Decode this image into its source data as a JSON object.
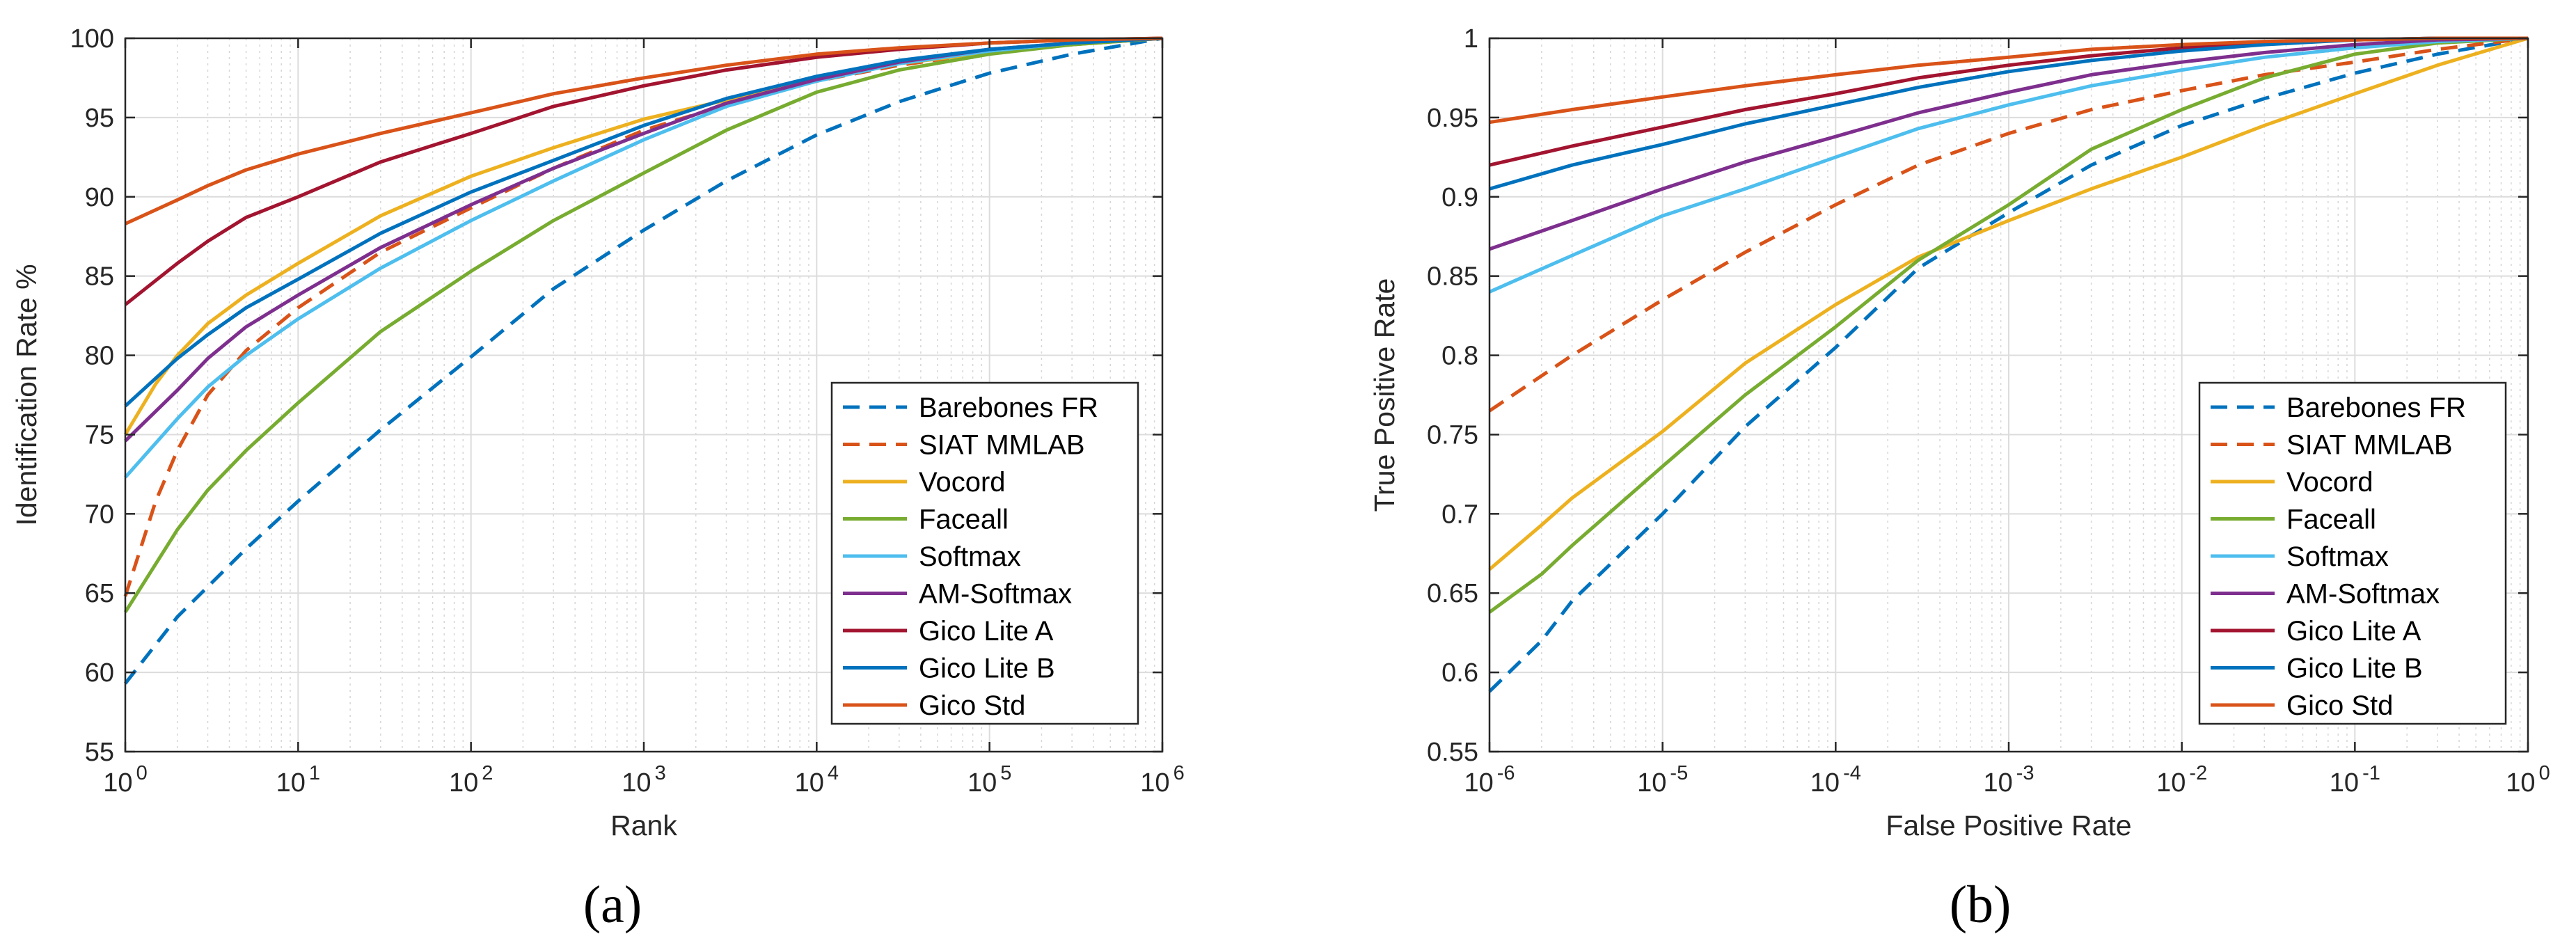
{
  "chart_data": [
    {
      "type": "line",
      "panel_label": "(a)",
      "xlabel": "Rank",
      "ylabel": "Identification Rate %",
      "xscale": "log",
      "xlim": [
        1,
        1000000
      ],
      "ylim": [
        55,
        100
      ],
      "xticks": [
        {
          "exp": 0,
          "base": "10",
          "sup": "0"
        },
        {
          "exp": 1,
          "base": "10",
          "sup": "1"
        },
        {
          "exp": 2,
          "base": "10",
          "sup": "2"
        },
        {
          "exp": 3,
          "base": "10",
          "sup": "3"
        },
        {
          "exp": 4,
          "base": "10",
          "sup": "4"
        },
        {
          "exp": 5,
          "base": "10",
          "sup": "5"
        },
        {
          "exp": 6,
          "base": "10",
          "sup": "6"
        }
      ],
      "yticks": [
        55,
        60,
        65,
        70,
        75,
        80,
        85,
        90,
        95,
        100
      ],
      "ytick_labels": [
        "55",
        "60",
        "65",
        "70",
        "75",
        "80",
        "85",
        "90",
        "95",
        "100"
      ],
      "grid": true,
      "legend_position": "bottom-right",
      "series": [
        {
          "name": "Barebones FR",
          "color": "#0072BD",
          "dashed": true,
          "x": [
            1,
            2,
            5,
            10,
            30,
            100,
            300,
            1000,
            3000,
            10000,
            30000,
            100000,
            300000,
            1000000
          ],
          "y": [
            59.3,
            63.5,
            67.8,
            70.8,
            75.3,
            79.9,
            84.2,
            87.9,
            91.0,
            93.9,
            96.0,
            97.8,
            99.0,
            100
          ]
        },
        {
          "name": "SIAT MMLAB",
          "color": "#D95319",
          "dashed": true,
          "x": [
            1,
            1.5,
            2,
            3,
            5,
            10,
            30,
            100,
            300,
            1000,
            3000,
            10000,
            30000,
            100000,
            300000,
            1000000
          ],
          "y": [
            64.8,
            70.8,
            74.0,
            77.5,
            80.3,
            83.0,
            86.5,
            89.3,
            91.8,
            94.2,
            95.8,
            97.3,
            98.3,
            99.1,
            99.6,
            100
          ]
        },
        {
          "name": "Vocord",
          "color": "#EDB120",
          "dashed": false,
          "x": [
            1,
            1.5,
            2,
            3,
            5,
            10,
            30,
            100,
            300,
            1000,
            3000,
            10000,
            30000,
            100000,
            300000,
            1000000
          ],
          "y": [
            75.0,
            78.2,
            80.0,
            82.0,
            83.8,
            85.8,
            88.8,
            91.3,
            93.1,
            94.9,
            96.1,
            97.5,
            98.4,
            99.1,
            99.6,
            100
          ]
        },
        {
          "name": "Faceall",
          "color": "#77AC30",
          "dashed": false,
          "x": [
            1,
            2,
            3,
            5,
            10,
            30,
            100,
            300,
            1000,
            3000,
            10000,
            30000,
            100000,
            300000,
            1000000
          ],
          "y": [
            63.8,
            69.0,
            71.5,
            74.0,
            77.0,
            81.5,
            85.3,
            88.5,
            91.5,
            94.2,
            96.6,
            98.0,
            99.0,
            99.6,
            100
          ]
        },
        {
          "name": "Softmax",
          "color": "#4DBEEE",
          "dashed": false,
          "x": [
            1,
            2,
            3,
            5,
            10,
            30,
            100,
            300,
            1000,
            3000,
            10000,
            30000,
            100000,
            300000,
            1000000
          ],
          "y": [
            72.3,
            76.0,
            78.0,
            80.0,
            82.3,
            85.5,
            88.5,
            91.0,
            93.6,
            95.7,
            97.3,
            98.4,
            99.2,
            99.7,
            100
          ]
        },
        {
          "name": "AM-Softmax",
          "color": "#7E2F8E",
          "dashed": false,
          "x": [
            1,
            2,
            3,
            5,
            10,
            30,
            100,
            300,
            1000,
            3000,
            10000,
            30000,
            100000,
            300000,
            1000000
          ],
          "y": [
            74.6,
            77.8,
            79.8,
            81.8,
            83.8,
            86.8,
            89.5,
            91.8,
            94.0,
            95.9,
            97.4,
            98.5,
            99.3,
            99.7,
            100
          ]
        },
        {
          "name": "Gico Lite A",
          "color": "#A2142F",
          "dashed": false,
          "x": [
            1,
            2,
            3,
            5,
            10,
            30,
            100,
            300,
            1000,
            3000,
            10000,
            30000,
            100000,
            300000,
            1000000
          ],
          "y": [
            83.2,
            85.8,
            87.2,
            88.7,
            90.0,
            92.2,
            94.0,
            95.7,
            97.0,
            98.0,
            98.8,
            99.3,
            99.7,
            99.9,
            100
          ]
        },
        {
          "name": "Gico Lite B",
          "color": "#0072BD",
          "dashed": false,
          "x": [
            1,
            2,
            3,
            5,
            10,
            30,
            100,
            300,
            1000,
            3000,
            10000,
            30000,
            100000,
            300000,
            1000000
          ],
          "y": [
            76.8,
            79.8,
            81.3,
            83.0,
            84.8,
            87.7,
            90.3,
            92.3,
            94.5,
            96.2,
            97.6,
            98.6,
            99.3,
            99.7,
            100
          ]
        },
        {
          "name": "Gico Std",
          "color": "#D95319",
          "dashed": false,
          "x": [
            1,
            2,
            3,
            5,
            10,
            30,
            100,
            300,
            1000,
            3000,
            10000,
            30000,
            100000,
            300000,
            1000000
          ],
          "y": [
            88.3,
            89.8,
            90.7,
            91.7,
            92.7,
            94.0,
            95.3,
            96.5,
            97.5,
            98.3,
            99.0,
            99.4,
            99.7,
            99.9,
            100
          ]
        }
      ]
    },
    {
      "type": "line",
      "panel_label": "(b)",
      "xlabel": "False Positive Rate",
      "ylabel": "True Positive Rate",
      "xscale": "log",
      "xlim": [
        1e-06,
        1
      ],
      "ylim": [
        0.55,
        1
      ],
      "xticks": [
        {
          "exp": -6,
          "base": "10",
          "sup": "-6"
        },
        {
          "exp": -5,
          "base": "10",
          "sup": "-5"
        },
        {
          "exp": -4,
          "base": "10",
          "sup": "-4"
        },
        {
          "exp": -3,
          "base": "10",
          "sup": "-3"
        },
        {
          "exp": -2,
          "base": "10",
          "sup": "-2"
        },
        {
          "exp": -1,
          "base": "10",
          "sup": "-1"
        },
        {
          "exp": 0,
          "base": "10",
          "sup": "0"
        }
      ],
      "yticks": [
        0.55,
        0.6,
        0.65,
        0.7,
        0.75,
        0.8,
        0.85,
        0.9,
        0.95,
        1
      ],
      "ytick_labels": [
        "0.55",
        "0.6",
        "0.65",
        "0.7",
        "0.75",
        "0.8",
        "0.85",
        "0.9",
        "0.95",
        "1"
      ],
      "grid": true,
      "legend_position": "bottom-right",
      "series": [
        {
          "name": "Barebones FR",
          "color": "#0072BD",
          "dashed": true,
          "x": [
            1e-06,
            2e-06,
            3e-06,
            1e-05,
            3e-05,
            0.0001,
            0.0003,
            0.001,
            0.003,
            0.01,
            0.03,
            0.1,
            0.3,
            1
          ],
          "y": [
            0.588,
            0.62,
            0.645,
            0.7,
            0.755,
            0.805,
            0.855,
            0.89,
            0.92,
            0.945,
            0.962,
            0.978,
            0.99,
            1.0
          ]
        },
        {
          "name": "SIAT MMLAB",
          "color": "#D95319",
          "dashed": true,
          "x": [
            1e-06,
            3e-06,
            1e-05,
            3e-05,
            0.0001,
            0.0003,
            0.001,
            0.003,
            0.01,
            0.03,
            0.1,
            0.3,
            1
          ],
          "y": [
            0.765,
            0.8,
            0.835,
            0.865,
            0.895,
            0.92,
            0.94,
            0.955,
            0.967,
            0.977,
            0.985,
            0.993,
            1.0
          ]
        },
        {
          "name": "Vocord",
          "color": "#EDB120",
          "dashed": false,
          "x": [
            1e-06,
            2e-06,
            3e-06,
            1e-05,
            3e-05,
            0.0001,
            0.0003,
            0.001,
            0.003,
            0.01,
            0.03,
            0.1,
            0.3,
            1
          ],
          "y": [
            0.665,
            0.693,
            0.71,
            0.752,
            0.795,
            0.832,
            0.862,
            0.885,
            0.905,
            0.925,
            0.945,
            0.965,
            0.983,
            1.0
          ]
        },
        {
          "name": "Faceall",
          "color": "#77AC30",
          "dashed": false,
          "x": [
            1e-06,
            2e-06,
            3e-06,
            1e-05,
            3e-05,
            0.0001,
            0.0003,
            0.001,
            0.003,
            0.01,
            0.03,
            0.1,
            0.3,
            1
          ],
          "y": [
            0.638,
            0.662,
            0.68,
            0.73,
            0.775,
            0.818,
            0.86,
            0.895,
            0.93,
            0.955,
            0.975,
            0.99,
            0.997,
            1.0
          ]
        },
        {
          "name": "Softmax",
          "color": "#4DBEEE",
          "dashed": false,
          "x": [
            1e-06,
            3e-06,
            1e-05,
            3e-05,
            0.0001,
            0.0003,
            0.001,
            0.003,
            0.01,
            0.03,
            0.1,
            0.3,
            1
          ],
          "y": [
            0.84,
            0.863,
            0.888,
            0.905,
            0.925,
            0.943,
            0.958,
            0.97,
            0.98,
            0.988,
            0.994,
            0.998,
            1.0
          ]
        },
        {
          "name": "AM-Softmax",
          "color": "#7E2F8E",
          "dashed": false,
          "x": [
            1e-06,
            3e-06,
            1e-05,
            3e-05,
            0.0001,
            0.0003,
            0.001,
            0.003,
            0.01,
            0.03,
            0.1,
            0.3,
            1
          ],
          "y": [
            0.867,
            0.885,
            0.905,
            0.922,
            0.938,
            0.953,
            0.966,
            0.977,
            0.985,
            0.991,
            0.996,
            0.999,
            1.0
          ]
        },
        {
          "name": "Gico Lite A",
          "color": "#A2142F",
          "dashed": false,
          "x": [
            1e-06,
            3e-06,
            1e-05,
            3e-05,
            0.0001,
            0.0003,
            0.001,
            0.003,
            0.01,
            0.03,
            0.1,
            0.3,
            1
          ],
          "y": [
            0.92,
            0.932,
            0.944,
            0.955,
            0.965,
            0.975,
            0.983,
            0.989,
            0.994,
            0.997,
            0.999,
            1.0,
            1.0
          ]
        },
        {
          "name": "Gico Lite B",
          "color": "#0072BD",
          "dashed": false,
          "x": [
            1e-06,
            3e-06,
            1e-05,
            3e-05,
            0.0001,
            0.0003,
            0.001,
            0.003,
            0.01,
            0.03,
            0.1,
            0.3,
            1
          ],
          "y": [
            0.905,
            0.92,
            0.933,
            0.946,
            0.958,
            0.969,
            0.979,
            0.986,
            0.992,
            0.996,
            0.999,
            1.0,
            1.0
          ]
        },
        {
          "name": "Gico Std",
          "color": "#D95319",
          "dashed": false,
          "x": [
            1e-06,
            3e-06,
            1e-05,
            3e-05,
            0.0001,
            0.0003,
            0.001,
            0.003,
            0.01,
            0.03,
            0.1,
            0.3,
            1
          ],
          "y": [
            0.947,
            0.955,
            0.963,
            0.97,
            0.977,
            0.983,
            0.988,
            0.993,
            0.996,
            0.998,
            0.999,
            1.0,
            1.0
          ]
        }
      ]
    }
  ]
}
